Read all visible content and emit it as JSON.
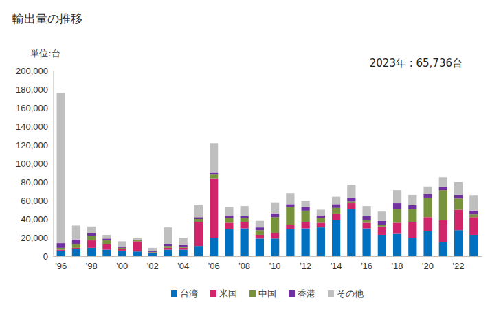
{
  "chart_data": {
    "type": "bar",
    "stacked": true,
    "title": "輸出量の推移",
    "y_label": "単位:台",
    "annotation": "2023年 : 65,736台",
    "legend": "bottom",
    "grid": false,
    "categories": [
      "'96",
      null,
      "'98",
      null,
      "'00",
      null,
      "'02",
      null,
      "'04",
      null,
      "'06",
      null,
      "'08",
      null,
      "'10",
      null,
      "'12",
      null,
      "'14",
      null,
      "'16",
      null,
      "'18",
      null,
      "'20",
      null,
      "'22",
      null
    ],
    "ylim": [
      0,
      200000
    ],
    "yticks": [
      0,
      {
        "value": 20000,
        "label": "20,000"
      },
      {
        "value": 40000,
        "label": "40,000"
      },
      {
        "value": 60000,
        "label": "60,000"
      },
      {
        "value": 80000,
        "label": "80,000"
      },
      {
        "value": 100000,
        "label": "100,000"
      },
      {
        "value": 120000,
        "label": "120,000"
      },
      {
        "value": 140000,
        "label": "140,000"
      },
      {
        "value": 160000,
        "label": "160,000"
      },
      {
        "value": 180000,
        "label": "180,000"
      },
      {
        "value": 200000,
        "label": "200,000"
      }
    ],
    "series": [
      {
        "name": "台湾",
        "color": "#0070c0",
        "values": [
          6000,
          8000,
          9000,
          7000,
          6000,
          5000,
          3000,
          7000,
          7000,
          11000,
          20000,
          29000,
          30000,
          19000,
          19000,
          29000,
          30000,
          31000,
          39000,
          51000,
          30000,
          23000,
          24000,
          20000,
          27000,
          15000,
          28000,
          23000
        ]
      },
      {
        "name": "米国",
        "color": "#d0246b",
        "values": [
          1000,
          1000,
          8000,
          6000,
          2000,
          11000,
          1000,
          2000,
          2000,
          26000,
          64000,
          7000,
          7000,
          4000,
          6000,
          5000,
          7000,
          5000,
          7000,
          6000,
          6000,
          9000,
          12000,
          17000,
          15000,
          24000,
          22000,
          19000
        ]
      },
      {
        "name": "中国",
        "color": "#77933c",
        "values": [
          2000,
          4000,
          5000,
          4000,
          1000,
          1000,
          500,
          2000,
          1000,
          3000,
          4000,
          5000,
          4000,
          5000,
          17000,
          19000,
          12000,
          5000,
          6000,
          2000,
          3000,
          2000,
          15000,
          14000,
          21000,
          32000,
          12000,
          3000
        ]
      },
      {
        "name": "香港",
        "color": "#7030a0",
        "values": [
          5000,
          5000,
          3000,
          2000,
          1000,
          1000,
          1000,
          2000,
          2000,
          2000,
          2000,
          3000,
          2000,
          3000,
          4000,
          3000,
          4000,
          3000,
          4000,
          4000,
          4000,
          4000,
          6000,
          4000,
          4000,
          4000,
          4000,
          4000
        ]
      },
      {
        "name": "その他",
        "color": "#bfbfbf",
        "values": [
          162000,
          15000,
          7000,
          4000,
          6000,
          2000,
          3500,
          18000,
          8000,
          13000,
          32000,
          9000,
          11000,
          7000,
          12000,
          12000,
          7000,
          6000,
          8000,
          14000,
          11000,
          10000,
          14000,
          11000,
          8000,
          10000,
          14000,
          16736
        ]
      }
    ]
  }
}
